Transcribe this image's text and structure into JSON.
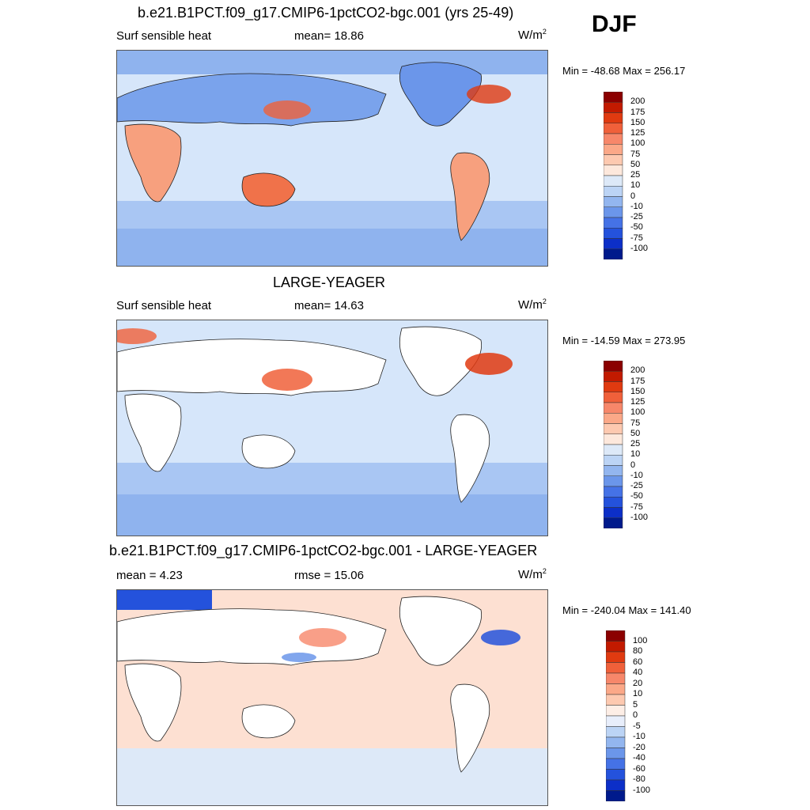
{
  "season": "DJF",
  "unit_prefix": "W/m",
  "unit_sup": "2",
  "panels": [
    {
      "title": "b.e21.B1PCT.f09_g17.CMIP6-1pctCO2-bgc.001 (yrs 25-49)",
      "left_label": "Surf sensible heat",
      "mid_label": "mean=  18.86",
      "minmax": "Min = -48.68 Max = 256.17"
    },
    {
      "title": "LARGE-YEAGER",
      "left_label": "Surf sensible heat",
      "mid_label": "mean=  14.63",
      "minmax": "Min = -14.59 Max = 273.95"
    },
    {
      "title": "b.e21.B1PCT.f09_g17.CMIP6-1pctCO2-bgc.001 - LARGE-YEAGER",
      "left_label": "mean =   4.23",
      "mid_label": "rmse =  15.06",
      "minmax": "Min = -240.04 Max = 141.40"
    }
  ],
  "chart_data": [
    {
      "type": "heatmap",
      "title": "b.e21.B1PCT.f09_g17.CMIP6-1pctCO2-bgc.001 (yrs 25-49)",
      "variable": "Surf sensible heat",
      "mean": 18.86,
      "min": -48.68,
      "max": 256.17,
      "colorbar_levels": [
        "200",
        "175",
        "150",
        "125",
        "100",
        "75",
        "50",
        "25",
        "10",
        "0",
        "-10",
        "-25",
        "-50",
        "-75",
        "-100"
      ],
      "colors": [
        "#8b0000",
        "#c21a00",
        "#e03a10",
        "#f0603a",
        "#f7876a",
        "#fba888",
        "#fdc9b0",
        "#fde8dc",
        "#dde9f8",
        "#bcd4f5",
        "#93b6ef",
        "#6b96ea",
        "#4572e6",
        "#2452dc",
        "#0c2fc8",
        "#001a8c"
      ]
    },
    {
      "type": "heatmap",
      "title": "LARGE-YEAGER",
      "variable": "Surf sensible heat",
      "mean": 14.63,
      "min": -14.59,
      "max": 273.95,
      "colorbar_levels": [
        "200",
        "175",
        "150",
        "125",
        "100",
        "75",
        "50",
        "25",
        "10",
        "0",
        "-10",
        "-25",
        "-50",
        "-75",
        "-100"
      ],
      "colors": [
        "#8b0000",
        "#c21a00",
        "#e03a10",
        "#f0603a",
        "#f7876a",
        "#fba888",
        "#fdc9b0",
        "#fde8dc",
        "#dde9f8",
        "#bcd4f5",
        "#93b6ef",
        "#6b96ea",
        "#4572e6",
        "#2452dc",
        "#0c2fc8",
        "#001a8c"
      ]
    },
    {
      "type": "heatmap",
      "title": "b.e21.B1PCT.f09_g17.CMIP6-1pctCO2-bgc.001 - LARGE-YEAGER",
      "mean": 4.23,
      "rmse": 15.06,
      "min": -240.04,
      "max": 141.4,
      "colorbar_levels": [
        "100",
        "80",
        "60",
        "40",
        "20",
        "10",
        "5",
        "0",
        "-5",
        "-10",
        "-20",
        "-40",
        "-60",
        "-80",
        "-100"
      ],
      "colors": [
        "#8b0000",
        "#c21a00",
        "#e03a10",
        "#f0603a",
        "#f7876a",
        "#fba888",
        "#fdc9b0",
        "#fdeee6",
        "#e8eefb",
        "#bcd4f5",
        "#93b6ef",
        "#6b96ea",
        "#4572e6",
        "#2452dc",
        "#0c2fc8",
        "#001a8c"
      ]
    }
  ]
}
